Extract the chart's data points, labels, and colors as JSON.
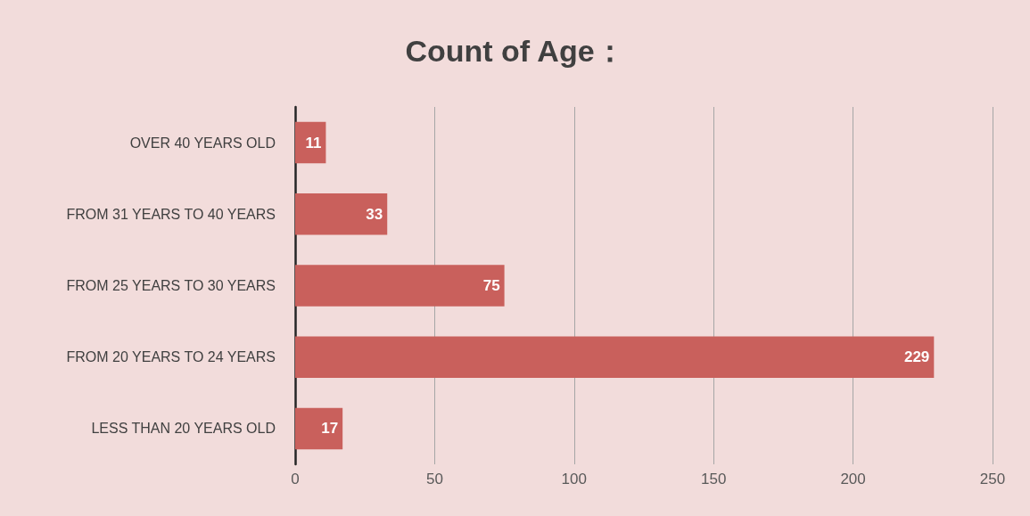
{
  "chart_data": {
    "type": "bar",
    "orientation": "horizontal",
    "title": "Count of Age：",
    "categories": [
      "OVER 40 YEARS OLD",
      "FROM 31 YEARS TO 40 YEARS",
      "FROM 25 YEARS TO 30 YEARS",
      "FROM 20 YEARS TO 24 YEARS",
      "LESS THAN 20 YEARS OLD"
    ],
    "values": [
      11,
      33,
      75,
      229,
      17
    ],
    "color": "#c9605c",
    "xlim": [
      0,
      250
    ],
    "xticks": [
      0,
      50,
      100,
      150,
      200,
      250
    ],
    "grid": "x",
    "data_labels": true
  }
}
